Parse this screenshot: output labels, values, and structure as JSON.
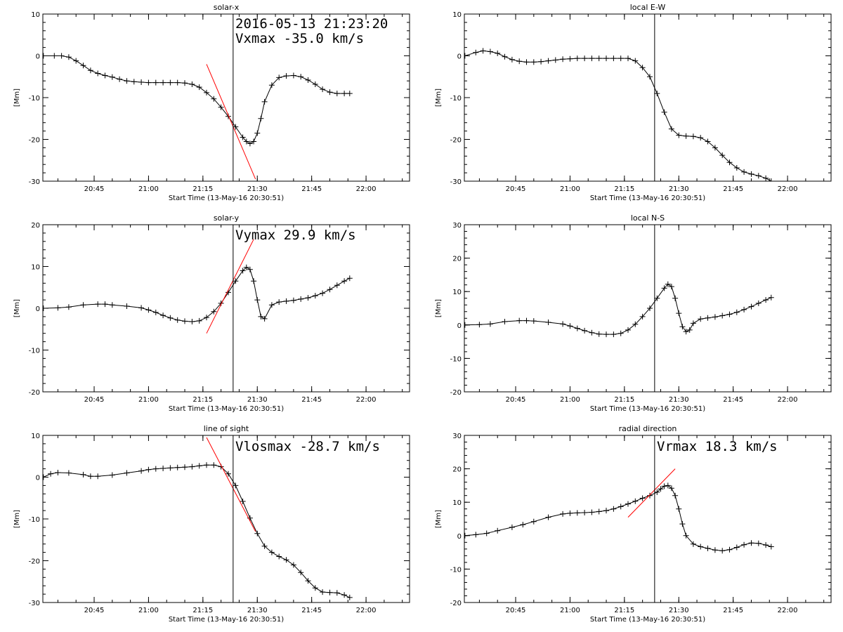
{
  "figure": {
    "type": "idl-multi-panel-time-series"
  },
  "chart_data": [
    {
      "type": "line",
      "title": "solar-x",
      "ylabel": "[Mm]",
      "xlabel": "Start Time (13-May-16 20:30:51)",
      "ylim": [
        -30,
        10
      ],
      "yticks": [
        -30,
        -20,
        -10,
        0,
        10
      ],
      "yticklabels": [
        "-30",
        "-20",
        "-10",
        "0",
        "10"
      ],
      "xlim": [
        "20:30:51",
        "22:12:00"
      ],
      "xticks": [
        "20:45",
        "21:00",
        "21:15",
        "21:30",
        "21:45",
        "22:00"
      ],
      "annotations": [
        "2016-05-13 21:23:20",
        "Vxmax  -35.0 km/s"
      ],
      "marker_time": "21:23:20",
      "series": [
        {
          "x": [
            "20:31:00",
            "20:34:00",
            "20:36:00",
            "20:38:00",
            "20:40:00",
            "20:42:00",
            "20:44:00",
            "20:46:00",
            "20:48:00",
            "20:50:00",
            "20:52:00",
            "20:54:00",
            "20:56:00",
            "20:58:00",
            "21:00:00",
            "21:02:00",
            "21:04:00",
            "21:06:00",
            "21:08:00",
            "21:10:00",
            "21:12:00",
            "21:14:00",
            "21:16:00",
            "21:18:00",
            "21:20:00",
            "21:22:00",
            "21:24:00",
            "21:26:00",
            "21:27:00",
            "21:28:00",
            "21:29:00",
            "21:30:00",
            "21:31:00",
            "21:32:00",
            "21:34:00",
            "21:36:00",
            "21:38:00",
            "21:40:00",
            "21:42:00",
            "21:44:00",
            "21:46:00",
            "21:48:00",
            "21:50:00",
            "21:52:00",
            "21:54:00",
            "21:55:30"
          ],
          "y": [
            0,
            0,
            0,
            -0.3,
            -1.2,
            -2.3,
            -3.5,
            -4.2,
            -4.7,
            -5.1,
            -5.6,
            -6.0,
            -6.2,
            -6.3,
            -6.4,
            -6.4,
            -6.4,
            -6.4,
            -6.4,
            -6.5,
            -6.8,
            -7.5,
            -8.8,
            -10.3,
            -12.3,
            -14.5,
            -17.0,
            -19.5,
            -20.5,
            -21.0,
            -20.5,
            -18.5,
            -15.0,
            -11.0,
            -7.0,
            -5.2,
            -4.8,
            -4.7,
            -5.0,
            -5.8,
            -6.8,
            -8.0,
            -8.7,
            -9.0,
            -9.0,
            -9.0
          ]
        }
      ],
      "fit_line": {
        "x": [
          "21:16:00",
          "21:29:30"
        ],
        "y": [
          -2,
          -29.5
        ]
      }
    },
    {
      "type": "line",
      "title": "local E-W",
      "ylabel": "[Mm]",
      "xlabel": "Start Time (13-May-16 20:30:51)",
      "ylim": [
        -30,
        10
      ],
      "yticks": [
        -30,
        -20,
        -10,
        0,
        10
      ],
      "yticklabels": [
        "-30",
        "-20",
        "-10",
        "0",
        "10"
      ],
      "xlim": [
        "20:30:51",
        "22:12:00"
      ],
      "xticks": [
        "20:45",
        "21:00",
        "21:15",
        "21:30",
        "21:45",
        "22:00"
      ],
      "annotations": [],
      "marker_time": "21:23:20",
      "series": [
        {
          "x": [
            "20:31:00",
            "20:34:00",
            "20:36:00",
            "20:38:00",
            "20:40:00",
            "20:42:00",
            "20:44:00",
            "20:46:00",
            "20:48:00",
            "20:50:00",
            "20:52:00",
            "20:54:00",
            "20:56:00",
            "20:58:00",
            "21:00:00",
            "21:02:00",
            "21:04:00",
            "21:06:00",
            "21:08:00",
            "21:10:00",
            "21:12:00",
            "21:14:00",
            "21:16:00",
            "21:18:00",
            "21:20:00",
            "21:22:00",
            "21:24:00",
            "21:26:00",
            "21:28:00",
            "21:30:00",
            "21:32:00",
            "21:34:00",
            "21:36:00",
            "21:38:00",
            "21:40:00",
            "21:42:00",
            "21:44:00",
            "21:46:00",
            "21:48:00",
            "21:50:00",
            "21:52:00",
            "21:54:00",
            "21:55:30"
          ],
          "y": [
            0,
            0.8,
            1.2,
            1.0,
            0.6,
            -0.2,
            -0.9,
            -1.3,
            -1.5,
            -1.5,
            -1.4,
            -1.2,
            -1.0,
            -0.8,
            -0.7,
            -0.6,
            -0.6,
            -0.6,
            -0.6,
            -0.6,
            -0.6,
            -0.6,
            -0.6,
            -1.2,
            -2.8,
            -5.0,
            -9.0,
            -13.5,
            -17.5,
            -19.0,
            -19.2,
            -19.3,
            -19.6,
            -20.5,
            -22.0,
            -23.8,
            -25.5,
            -26.8,
            -27.8,
            -28.3,
            -28.7,
            -29.3,
            -30.0
          ]
        }
      ],
      "fit_line": null
    },
    {
      "type": "line",
      "title": "solar-y",
      "ylabel": "[Mm]",
      "xlabel": "Start Time (13-May-16 20:30:51)",
      "ylim": [
        -20,
        20
      ],
      "yticks": [
        -20,
        -10,
        0,
        10,
        20
      ],
      "yticklabels": [
        "-20",
        "-10",
        "0",
        "10",
        "20"
      ],
      "xlim": [
        "20:30:51",
        "22:12:00"
      ],
      "xticks": [
        "20:45",
        "21:00",
        "21:15",
        "21:30",
        "21:45",
        "22:00"
      ],
      "annotations": [
        "Vymax   29.9 km/s"
      ],
      "marker_time": "21:23:20",
      "series": [
        {
          "x": [
            "20:31:00",
            "20:35:00",
            "20:38:00",
            "20:42:00",
            "20:46:00",
            "20:48:00",
            "20:50:00",
            "20:54:00",
            "20:58:00",
            "21:00:00",
            "21:02:00",
            "21:04:00",
            "21:06:00",
            "21:08:00",
            "21:10:00",
            "21:12:00",
            "21:14:00",
            "21:16:00",
            "21:18:00",
            "21:20:00",
            "21:22:00",
            "21:24:00",
            "21:26:00",
            "21:27:00",
            "21:28:00",
            "21:29:00",
            "21:30:00",
            "21:31:00",
            "21:32:00",
            "21:34:00",
            "21:36:00",
            "21:38:00",
            "21:40:00",
            "21:42:00",
            "21:44:00",
            "21:46:00",
            "21:48:00",
            "21:50:00",
            "21:52:00",
            "21:54:00",
            "21:55:30"
          ],
          "y": [
            0,
            0.1,
            0.3,
            0.8,
            1.0,
            1.0,
            0.8,
            0.5,
            0.1,
            -0.4,
            -1.0,
            -1.7,
            -2.3,
            -2.8,
            -3.1,
            -3.2,
            -3.0,
            -2.2,
            -0.8,
            1.2,
            3.8,
            6.5,
            9.0,
            9.8,
            9.3,
            6.5,
            2.0,
            -2.0,
            -2.5,
            0.8,
            1.5,
            1.7,
            1.9,
            2.2,
            2.5,
            3.0,
            3.6,
            4.5,
            5.5,
            6.5,
            7.2
          ]
        }
      ],
      "fit_line": {
        "x": [
          "21:16:00",
          "21:29:00"
        ],
        "y": [
          -6,
          16.5
        ]
      }
    },
    {
      "type": "line",
      "title": "local N-S",
      "ylabel": "[Mm]",
      "xlabel": "Start Time (13-May-16 20:30:51)",
      "ylim": [
        -20,
        30
      ],
      "yticks": [
        -20,
        -10,
        0,
        10,
        20,
        30
      ],
      "yticklabels": [
        "-20",
        "-10",
        "0",
        "10",
        "20",
        "30"
      ],
      "xlim": [
        "20:30:51",
        "22:12:00"
      ],
      "xticks": [
        "20:45",
        "21:00",
        "21:15",
        "21:30",
        "21:45",
        "22:00"
      ],
      "annotations": [],
      "marker_time": "21:23:20",
      "series": [
        {
          "x": [
            "20:31:00",
            "20:35:00",
            "20:38:00",
            "20:42:00",
            "20:46:00",
            "20:48:00",
            "20:50:00",
            "20:54:00",
            "20:58:00",
            "21:00:00",
            "21:02:00",
            "21:04:00",
            "21:06:00",
            "21:08:00",
            "21:10:00",
            "21:12:00",
            "21:14:00",
            "21:16:00",
            "21:18:00",
            "21:20:00",
            "21:22:00",
            "21:24:00",
            "21:26:00",
            "21:27:00",
            "21:28:00",
            "21:29:00",
            "21:30:00",
            "21:31:00",
            "21:32:00",
            "21:33:00",
            "21:34:00",
            "21:36:00",
            "21:38:00",
            "21:40:00",
            "21:42:00",
            "21:44:00",
            "21:46:00",
            "21:48:00",
            "21:50:00",
            "21:52:00",
            "21:54:00",
            "21:55:30"
          ],
          "y": [
            0,
            0.1,
            0.3,
            1.0,
            1.3,
            1.3,
            1.2,
            0.8,
            0.3,
            -0.3,
            -1.0,
            -1.7,
            -2.3,
            -2.7,
            -2.8,
            -2.8,
            -2.5,
            -1.5,
            0.2,
            2.5,
            5.0,
            8.0,
            11.0,
            12.2,
            11.5,
            8.0,
            3.5,
            -0.5,
            -2.0,
            -1.5,
            0.5,
            1.8,
            2.1,
            2.4,
            2.8,
            3.2,
            3.8,
            4.6,
            5.5,
            6.5,
            7.5,
            8.2
          ]
        }
      ],
      "fit_line": null
    },
    {
      "type": "line",
      "title": "line of sight",
      "ylabel": "[Mm]",
      "xlabel": "Start Time (13-May-16 20:30:51)",
      "ylim": [
        -30,
        10
      ],
      "yticks": [
        -30,
        -20,
        -10,
        0,
        10
      ],
      "yticklabels": [
        "-30",
        "-20",
        "-10",
        "0",
        "10"
      ],
      "xlim": [
        "20:30:51",
        "22:12:00"
      ],
      "xticks": [
        "20:45",
        "21:00",
        "21:15",
        "21:30",
        "21:45",
        "22:00"
      ],
      "annotations": [
        "Vlosmax  -28.7 km/s"
      ],
      "marker_time": "21:23:20",
      "series": [
        {
          "x": [
            "20:31:00",
            "20:33:00",
            "20:35:00",
            "20:38:00",
            "20:42:00",
            "20:44:00",
            "20:46:00",
            "20:50:00",
            "20:54:00",
            "20:58:00",
            "21:00:00",
            "21:02:00",
            "21:04:00",
            "21:06:00",
            "21:08:00",
            "21:10:00",
            "21:12:00",
            "21:14:00",
            "21:16:00",
            "21:18:00",
            "21:20:00",
            "21:22:00",
            "21:24:00",
            "21:26:00",
            "21:28:00",
            "21:30:00",
            "21:32:00",
            "21:34:00",
            "21:36:00",
            "21:38:00",
            "21:40:00",
            "21:42:00",
            "21:44:00",
            "21:46:00",
            "21:48:00",
            "21:50:00",
            "21:52:00",
            "21:54:00",
            "21:55:30"
          ],
          "y": [
            0,
            0.8,
            1.1,
            1.0,
            0.6,
            0.2,
            0.2,
            0.5,
            1.0,
            1.5,
            1.8,
            2.0,
            2.1,
            2.2,
            2.3,
            2.4,
            2.5,
            2.7,
            2.9,
            2.9,
            2.5,
            0.8,
            -2.0,
            -5.8,
            -9.8,
            -13.5,
            -16.5,
            -18.0,
            -19.0,
            -19.8,
            -21.0,
            -22.8,
            -24.8,
            -26.5,
            -27.5,
            -27.6,
            -27.7,
            -28.2,
            -28.8
          ]
        }
      ],
      "fit_line": {
        "x": [
          "21:16:00",
          "21:29:30"
        ],
        "y": [
          9.5,
          -13
        ]
      }
    },
    {
      "type": "line",
      "title": "radial direction",
      "ylabel": "[Mm]",
      "xlabel": "Start Time (13-May-16 20:30:51)",
      "ylim": [
        -20,
        30
      ],
      "yticks": [
        -20,
        -10,
        0,
        10,
        20,
        30
      ],
      "yticklabels": [
        "-20",
        "-10",
        "0",
        "10",
        "20",
        "30"
      ],
      "xlim": [
        "20:30:51",
        "22:12:00"
      ],
      "xticks": [
        "20:45",
        "21:00",
        "21:15",
        "21:30",
        "21:45",
        "22:00"
      ],
      "annotations": [
        "Vrmax   18.3 km/s"
      ],
      "marker_time": "21:23:20",
      "series": [
        {
          "x": [
            "20:31:00",
            "20:34:00",
            "20:37:00",
            "20:40:00",
            "20:44:00",
            "20:47:00",
            "20:50:00",
            "20:54:00",
            "20:58:00",
            "21:00:00",
            "21:02:00",
            "21:04:00",
            "21:06:00",
            "21:08:00",
            "21:10:00",
            "21:12:00",
            "21:14:00",
            "21:16:00",
            "21:18:00",
            "21:20:00",
            "21:22:00",
            "21:24:00",
            "21:25:00",
            "21:26:00",
            "21:27:00",
            "21:28:00",
            "21:29:00",
            "21:30:00",
            "21:31:00",
            "21:32:00",
            "21:34:00",
            "21:36:00",
            "21:38:00",
            "21:40:00",
            "21:42:00",
            "21:44:00",
            "21:46:00",
            "21:48:00",
            "21:50:00",
            "21:52:00",
            "21:54:00",
            "21:55:30"
          ],
          "y": [
            0,
            0.3,
            0.7,
            1.5,
            2.5,
            3.3,
            4.2,
            5.5,
            6.5,
            6.7,
            6.8,
            6.9,
            7.0,
            7.2,
            7.5,
            8.0,
            8.7,
            9.5,
            10.3,
            11.2,
            12.0,
            13.0,
            14.0,
            14.8,
            15.0,
            14.2,
            12.0,
            8.0,
            3.5,
            0.0,
            -2.5,
            -3.3,
            -3.8,
            -4.3,
            -4.5,
            -4.2,
            -3.5,
            -2.7,
            -2.2,
            -2.3,
            -2.8,
            -3.3
          ]
        }
      ],
      "fit_line": {
        "x": [
          "21:16:00",
          "21:29:00"
        ],
        "y": [
          5.5,
          20
        ]
      }
    }
  ]
}
